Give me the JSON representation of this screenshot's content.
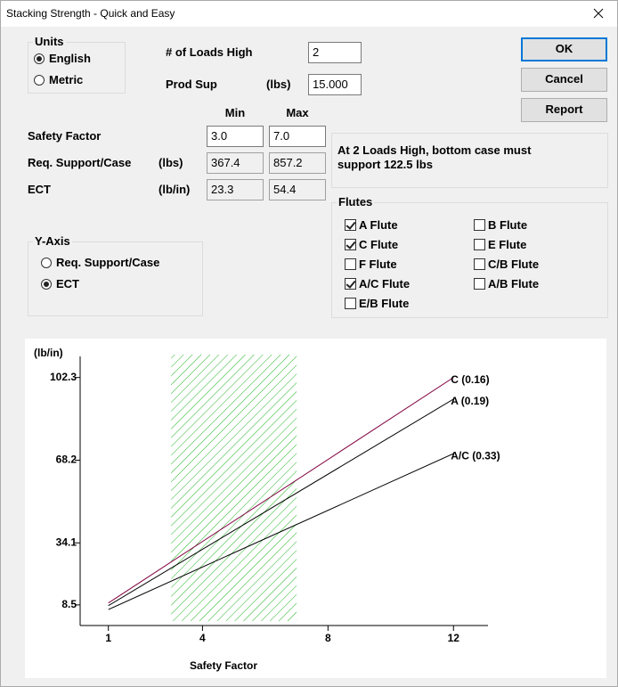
{
  "window": {
    "title": "Stacking Strength - Quick and Easy"
  },
  "units": {
    "label": "Units",
    "options": [
      {
        "label": "English",
        "selected": true
      },
      {
        "label": "Metric",
        "selected": false
      }
    ]
  },
  "loads_high": {
    "label": "# of Loads High",
    "value": "2"
  },
  "prod_sup": {
    "label": "Prod Sup",
    "unit": "(lbs)",
    "value": "15.000"
  },
  "buttons": [
    "OK",
    "Cancel",
    "Report"
  ],
  "table": {
    "headers": [
      "Min",
      "Max"
    ],
    "rows": [
      {
        "label": "Safety Factor",
        "min": "3.0",
        "max": "7.0",
        "editable": true
      },
      {
        "label": "Req. Support/Case",
        "unit": "(lbs)",
        "min": "367.4",
        "max": "857.2",
        "editable": false
      },
      {
        "label": "ECT",
        "unit": "(lb/in)",
        "min": "23.3",
        "max": "54.4",
        "editable": false
      }
    ]
  },
  "message": "At 2 Loads High, bottom case must support 122.5 lbs",
  "flutes": {
    "label": "Flutes",
    "columns": [
      [
        {
          "label": "A Flute",
          "checked": true
        },
        {
          "label": "C Flute",
          "checked": true
        },
        {
          "label": "F Flute",
          "checked": false
        },
        {
          "label": "A/C Flute",
          "checked": true
        },
        {
          "label": "E/B Flute",
          "checked": false
        }
      ],
      [
        {
          "label": "B Flute",
          "checked": false
        },
        {
          "label": "E Flute",
          "checked": false
        },
        {
          "label": "C/B Flute",
          "checked": false
        },
        {
          "label": "A/B Flute",
          "checked": false
        }
      ]
    ]
  },
  "y_axis_group": {
    "label": "Y-Axis",
    "options": [
      {
        "label": "Req. Support/Case",
        "selected": false
      },
      {
        "label": "ECT",
        "selected": true
      }
    ]
  },
  "chart_data": {
    "type": "line",
    "y_label": "(lb/in)",
    "x_label": "Safety Factor",
    "xlim": [
      0.1,
      13.1
    ],
    "ylim": [
      0,
      111
    ],
    "xticks": [
      1,
      4,
      8,
      12
    ],
    "yticks": [
      8.5,
      34.1,
      68.2,
      102.3
    ],
    "shaded_range": [
      3,
      7
    ],
    "shade_color": "#22b422",
    "series": [
      {
        "name": "C (0.16)",
        "color": "#800040",
        "x": [
          1,
          12
        ],
        "values": [
          9.3,
          102.3
        ]
      },
      {
        "name": "A (0.19)",
        "color": "#000000",
        "x": [
          1,
          12
        ],
        "values": [
          8.2,
          93.4
        ]
      },
      {
        "name": "A/C (0.33)",
        "color": "#000000",
        "x": [
          1,
          12
        ],
        "values": [
          6.6,
          70.9
        ]
      }
    ]
  }
}
